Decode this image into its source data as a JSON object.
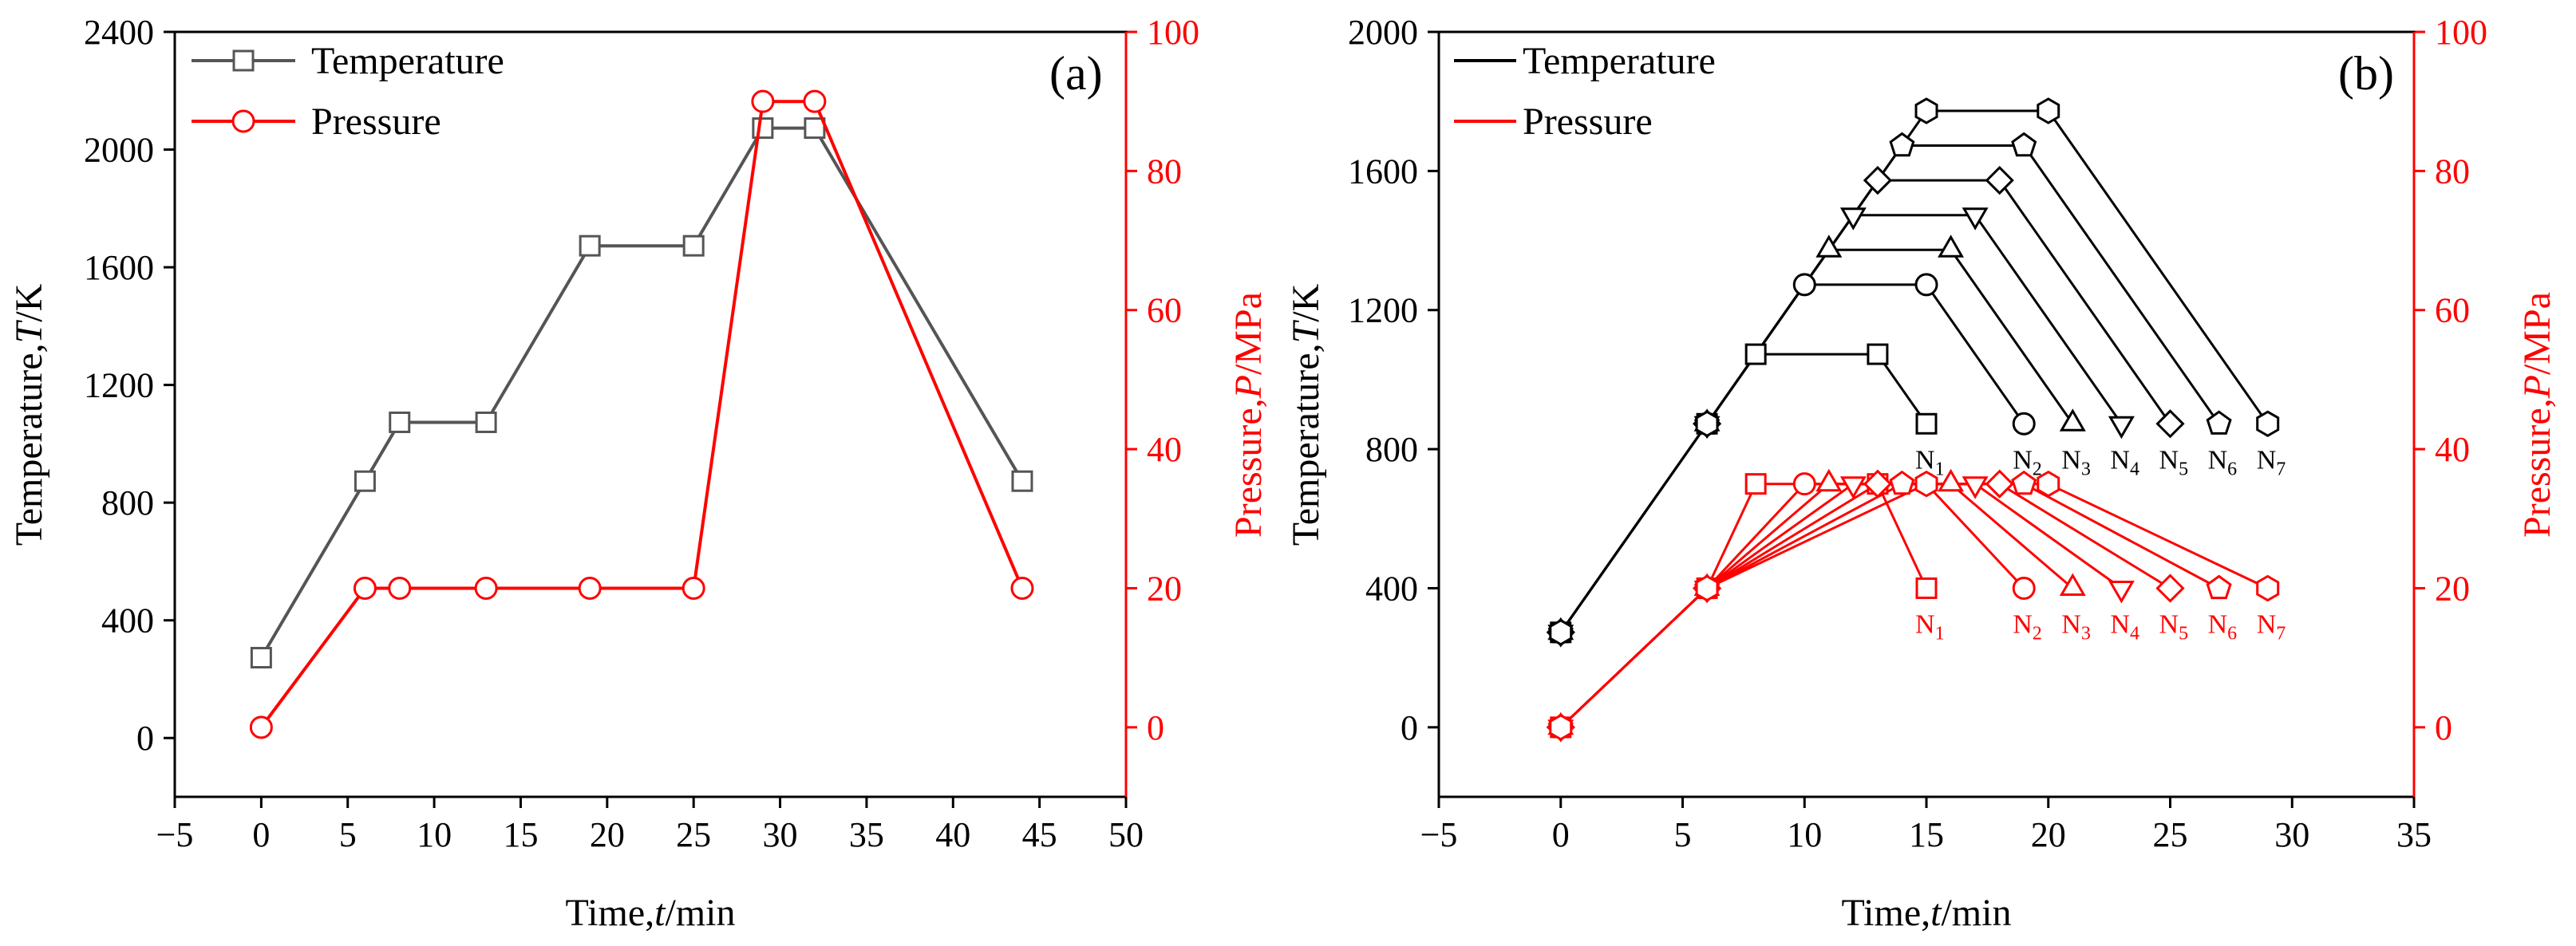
{
  "figure": {
    "colors": {
      "temperature": "#555555",
      "temperature_b": "#000000",
      "pressure": "#ff0000",
      "axis": "#000000"
    }
  },
  "chart_data": [
    {
      "type": "line",
      "panel_label": "(a)",
      "xlabel_prefix": "Time,",
      "xlabel_var": "t",
      "xlabel_unit": "/min",
      "ylabel_prefix": "Temperature,",
      "ylabel_var": "T",
      "ylabel_unit": "/K",
      "y2label_prefix": "Pressure,",
      "y2label_var": "P",
      "y2label_unit": "/MPa",
      "xlim": [
        -5,
        50
      ],
      "ylim": [
        -200,
        2400
      ],
      "y2lim": [
        -10,
        100
      ],
      "xticks": [
        -5,
        0,
        5,
        10,
        15,
        20,
        25,
        30,
        35,
        40,
        45,
        50
      ],
      "xtick_labels": [
        "−5",
        "0",
        "5",
        "10",
        "15",
        "20",
        "25",
        "30",
        "35",
        "40",
        "45",
        "50"
      ],
      "yticks": [
        0,
        400,
        800,
        1200,
        1600,
        2000,
        2400
      ],
      "ytick_labels": [
        "0",
        "400",
        "800",
        "1200",
        "1600",
        "2000",
        "2400"
      ],
      "y2ticks": [
        0,
        20,
        40,
        60,
        80,
        100
      ],
      "y2tick_labels": [
        "0",
        "20",
        "40",
        "60",
        "80",
        "100"
      ],
      "legend": [
        "Temperature",
        "Pressure"
      ],
      "series": [
        {
          "name": "Temperature",
          "axis": "left",
          "marker": "square",
          "x": [
            0,
            6,
            8,
            13,
            19,
            25,
            29,
            32,
            44
          ],
          "y": [
            273,
            873,
            1073,
            1073,
            1673,
            1673,
            2073,
            2073,
            873
          ]
        },
        {
          "name": "Pressure",
          "axis": "right",
          "marker": "circle",
          "x": [
            0,
            6,
            8,
            13,
            19,
            25,
            29,
            32,
            44
          ],
          "y": [
            0,
            20,
            20,
            20,
            20,
            20,
            90,
            90,
            20
          ]
        }
      ]
    },
    {
      "type": "line",
      "panel_label": "(b)",
      "xlabel_prefix": "Time,",
      "xlabel_var": "t",
      "xlabel_unit": "/min",
      "ylabel_prefix": "Temperature,",
      "ylabel_var": "T",
      "ylabel_unit": "/K",
      "y2label_prefix": "Pressure,",
      "y2label_var": "P",
      "y2label_unit": "/MPa",
      "xlim": [
        -5,
        35
      ],
      "ylim": [
        -200,
        2000
      ],
      "y2lim": [
        -10,
        100
      ],
      "xticks": [
        -5,
        0,
        5,
        10,
        15,
        20,
        25,
        30,
        35
      ],
      "xtick_labels": [
        "−5",
        "0",
        "5",
        "10",
        "15",
        "20",
        "25",
        "30",
        "35"
      ],
      "yticks": [
        0,
        400,
        800,
        1200,
        1600,
        2000
      ],
      "ytick_labels": [
        "0",
        "400",
        "800",
        "1200",
        "1600",
        "2000"
      ],
      "y2ticks": [
        0,
        20,
        40,
        60,
        80,
        100
      ],
      "y2tick_labels": [
        "0",
        "20",
        "40",
        "60",
        "80",
        "100"
      ],
      "legend": [
        "Temperature",
        "Pressure"
      ],
      "temperature_series": [
        {
          "name": "N1",
          "label_main": "N",
          "label_sub": "1",
          "marker": "square",
          "x": [
            0,
            6,
            8,
            13,
            15
          ],
          "y": [
            273,
            873,
            1073,
            1073,
            873
          ]
        },
        {
          "name": "N2",
          "label_main": "N",
          "label_sub": "2",
          "marker": "circle",
          "x": [
            0,
            6,
            10,
            15,
            19
          ],
          "y": [
            273,
            873,
            1273,
            1273,
            873
          ]
        },
        {
          "name": "N3",
          "label_main": "N",
          "label_sub": "3",
          "marker": "triangle",
          "x": [
            0,
            6,
            11,
            16,
            21
          ],
          "y": [
            273,
            873,
            1373,
            1373,
            873
          ]
        },
        {
          "name": "N4",
          "label_main": "N",
          "label_sub": "4",
          "marker": "tri-down",
          "x": [
            0,
            6,
            12,
            17,
            23
          ],
          "y": [
            273,
            873,
            1473,
            1473,
            873
          ]
        },
        {
          "name": "N5",
          "label_main": "N",
          "label_sub": "5",
          "marker": "diamond",
          "x": [
            0,
            6,
            13,
            18,
            25
          ],
          "y": [
            273,
            873,
            1573,
            1573,
            873
          ]
        },
        {
          "name": "N6",
          "label_main": "N",
          "label_sub": "6",
          "marker": "pentagon",
          "x": [
            0,
            6,
            14,
            19,
            27
          ],
          "y": [
            273,
            873,
            1673,
            1673,
            873
          ]
        },
        {
          "name": "N7",
          "label_main": "N",
          "label_sub": "7",
          "marker": "hexagon",
          "x": [
            0,
            6,
            15,
            20,
            29
          ],
          "y": [
            273,
            873,
            1773,
            1773,
            873
          ]
        }
      ],
      "pressure_series": [
        {
          "name": "N1",
          "label_main": "N",
          "label_sub": "1",
          "marker": "square",
          "x": [
            0,
            6,
            8,
            13,
            15
          ],
          "y": [
            0,
            20,
            35,
            35,
            20
          ]
        },
        {
          "name": "N2",
          "label_main": "N",
          "label_sub": "2",
          "marker": "circle",
          "x": [
            0,
            6,
            10,
            15,
            19
          ],
          "y": [
            0,
            20,
            35,
            35,
            20
          ]
        },
        {
          "name": "N3",
          "label_main": "N",
          "label_sub": "3",
          "marker": "triangle",
          "x": [
            0,
            6,
            11,
            16,
            21
          ],
          "y": [
            0,
            20,
            35,
            35,
            20
          ]
        },
        {
          "name": "N4",
          "label_main": "N",
          "label_sub": "4",
          "marker": "tri-down",
          "x": [
            0,
            6,
            12,
            17,
            23
          ],
          "y": [
            0,
            20,
            35,
            35,
            20
          ]
        },
        {
          "name": "N5",
          "label_main": "N",
          "label_sub": "5",
          "marker": "diamond",
          "x": [
            0,
            6,
            13,
            18,
            25
          ],
          "y": [
            0,
            20,
            35,
            35,
            20
          ]
        },
        {
          "name": "N6",
          "label_main": "N",
          "label_sub": "6",
          "marker": "pentagon",
          "x": [
            0,
            6,
            14,
            19,
            27
          ],
          "y": [
            0,
            20,
            35,
            35,
            20
          ]
        },
        {
          "name": "N7",
          "label_main": "N",
          "label_sub": "7",
          "marker": "hexagon",
          "x": [
            0,
            6,
            15,
            20,
            29
          ],
          "y": [
            0,
            20,
            35,
            35,
            20
          ]
        }
      ]
    }
  ]
}
